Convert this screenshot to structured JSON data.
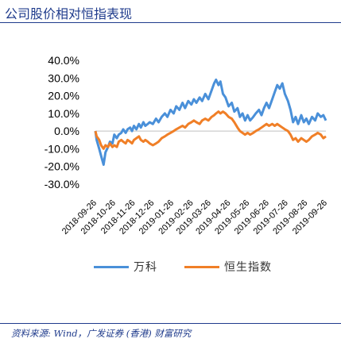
{
  "header": {
    "title": "公司股价相对恒指表现"
  },
  "footer": {
    "source": "资料来源: Wind，广发证券 (香港) 财富研究"
  },
  "colors": {
    "accent": "#1f3b8c",
    "series_vanke": "#4a90d9",
    "series_hsi": "#f07f27",
    "axis_text": "#000000"
  },
  "chart_data": {
    "type": "line",
    "title": "",
    "xlabel": "",
    "ylabel": "",
    "ylim": [
      -0.3,
      0.4
    ],
    "y_ticks": [
      "40.0%",
      "30.0%",
      "20.0%",
      "10.0%",
      "0.0%",
      "-10.0%",
      "-20.0%",
      "-30.0%"
    ],
    "y_tick_values": [
      0.4,
      0.3,
      0.2,
      0.1,
      0.0,
      -0.1,
      -0.2,
      -0.3
    ],
    "x_range": [
      "2018-09-26",
      "2019-09-26"
    ],
    "x_tick_labels": [
      "2018-09-26",
      "2018-10-26",
      "2018-11-26",
      "2018-12-26",
      "2019-01-26",
      "2019-02-26",
      "2019-03-26",
      "2019-04-26",
      "2019-05-26",
      "2019-06-26",
      "2019-07-26",
      "2019-08-26",
      "2019-09-26"
    ],
    "x_tick_dates": [
      "2018-09-26",
      "2018-10-26",
      "2018-11-26",
      "2018-12-26",
      "2019-01-26",
      "2019-02-26",
      "2019-03-26",
      "2019-04-26",
      "2019-05-26",
      "2019-06-26",
      "2019-07-26",
      "2019-08-26",
      "2019-09-26"
    ],
    "grid": false,
    "legend_position": "bottom",
    "series": [
      {
        "name": "万科",
        "points": [
          [
            "2018-09-26",
            0.0
          ],
          [
            "2018-09-28",
            -0.05
          ],
          [
            "2018-10-02",
            -0.1
          ],
          [
            "2018-10-05",
            -0.14
          ],
          [
            "2018-10-09",
            -0.19
          ],
          [
            "2018-10-12",
            -0.12
          ],
          [
            "2018-10-16",
            -0.09
          ],
          [
            "2018-10-19",
            -0.06
          ],
          [
            "2018-10-23",
            -0.07
          ],
          [
            "2018-10-26",
            -0.02
          ],
          [
            "2018-10-30",
            -0.04
          ],
          [
            "2018-11-02",
            -0.02
          ],
          [
            "2018-11-06",
            -0.01
          ],
          [
            "2018-11-09",
            0.01
          ],
          [
            "2018-11-13",
            -0.01
          ],
          [
            "2018-11-16",
            0.01
          ],
          [
            "2018-11-20",
            0.02
          ],
          [
            "2018-11-23",
            0.0
          ],
          [
            "2018-11-26",
            0.03
          ],
          [
            "2018-11-30",
            0.01
          ],
          [
            "2018-12-04",
            0.04
          ],
          [
            "2018-12-07",
            0.02
          ],
          [
            "2018-12-11",
            0.05
          ],
          [
            "2018-12-14",
            0.03
          ],
          [
            "2018-12-18",
            0.04
          ],
          [
            "2018-12-21",
            0.05
          ],
          [
            "2018-12-26",
            0.04
          ],
          [
            "2018-12-31",
            0.07
          ],
          [
            "2019-01-04",
            0.05
          ],
          [
            "2019-01-09",
            0.08
          ],
          [
            "2019-01-14",
            0.1
          ],
          [
            "2019-01-18",
            0.08
          ],
          [
            "2019-01-23",
            0.12
          ],
          [
            "2019-01-28",
            0.1
          ],
          [
            "2019-02-01",
            0.14
          ],
          [
            "2019-02-06",
            0.12
          ],
          [
            "2019-02-11",
            0.16
          ],
          [
            "2019-02-15",
            0.13
          ],
          [
            "2019-02-20",
            0.17
          ],
          [
            "2019-02-25",
            0.15
          ],
          [
            "2019-03-01",
            0.18
          ],
          [
            "2019-03-05",
            0.16
          ],
          [
            "2019-03-10",
            0.19
          ],
          [
            "2019-03-14",
            0.17
          ],
          [
            "2019-03-19",
            0.21
          ],
          [
            "2019-03-24",
            0.18
          ],
          [
            "2019-03-29",
            0.23
          ],
          [
            "2019-04-02",
            0.27
          ],
          [
            "2019-04-05",
            0.29
          ],
          [
            "2019-04-09",
            0.26
          ],
          [
            "2019-04-12",
            0.28
          ],
          [
            "2019-04-16",
            0.21
          ],
          [
            "2019-04-20",
            0.19
          ],
          [
            "2019-04-25",
            0.14
          ],
          [
            "2019-04-30",
            0.16
          ],
          [
            "2019-05-04",
            0.11
          ],
          [
            "2019-05-09",
            0.13
          ],
          [
            "2019-05-13",
            0.08
          ],
          [
            "2019-05-17",
            0.1
          ],
          [
            "2019-05-21",
            0.06
          ],
          [
            "2019-05-25",
            0.09
          ],
          [
            "2019-05-29",
            0.06
          ],
          [
            "2019-06-03",
            0.08
          ],
          [
            "2019-06-07",
            0.1
          ],
          [
            "2019-06-12",
            0.12
          ],
          [
            "2019-06-16",
            0.09
          ],
          [
            "2019-06-20",
            0.13
          ],
          [
            "2019-06-24",
            0.16
          ],
          [
            "2019-06-28",
            0.13
          ],
          [
            "2019-07-03",
            0.18
          ],
          [
            "2019-07-07",
            0.22
          ],
          [
            "2019-07-11",
            0.26
          ],
          [
            "2019-07-15",
            0.24
          ],
          [
            "2019-07-19",
            0.27
          ],
          [
            "2019-07-23",
            0.21
          ],
          [
            "2019-07-28",
            0.17
          ],
          [
            "2019-08-01",
            0.12
          ],
          [
            "2019-08-05",
            0.05
          ],
          [
            "2019-08-09",
            0.08
          ],
          [
            "2019-08-13",
            0.04
          ],
          [
            "2019-08-18",
            0.09
          ],
          [
            "2019-08-22",
            0.05
          ],
          [
            "2019-08-26",
            0.07
          ],
          [
            "2019-08-30",
            0.04
          ],
          [
            "2019-09-04",
            0.08
          ],
          [
            "2019-09-09",
            0.06
          ],
          [
            "2019-09-13",
            0.1
          ],
          [
            "2019-09-18",
            0.08
          ],
          [
            "2019-09-22",
            0.09
          ],
          [
            "2019-09-26",
            0.06
          ]
        ]
      },
      {
        "name": "恒生指数",
        "points": [
          [
            "2018-09-26",
            0.0
          ],
          [
            "2018-09-28",
            -0.03
          ],
          [
            "2018-10-02",
            -0.05
          ],
          [
            "2018-10-05",
            -0.08
          ],
          [
            "2018-10-09",
            -0.1
          ],
          [
            "2018-10-12",
            -0.08
          ],
          [
            "2018-10-16",
            -0.09
          ],
          [
            "2018-10-19",
            -0.07
          ],
          [
            "2018-10-23",
            -0.09
          ],
          [
            "2018-10-26",
            -0.08
          ],
          [
            "2018-10-30",
            -0.09
          ],
          [
            "2018-11-02",
            -0.06
          ],
          [
            "2018-11-06",
            -0.05
          ],
          [
            "2018-11-09",
            -0.06
          ],
          [
            "2018-11-13",
            -0.07
          ],
          [
            "2018-11-16",
            -0.05
          ],
          [
            "2018-11-20",
            -0.06
          ],
          [
            "2018-11-23",
            -0.07
          ],
          [
            "2018-11-26",
            -0.05
          ],
          [
            "2018-11-30",
            -0.04
          ],
          [
            "2018-12-04",
            -0.03
          ],
          [
            "2018-12-07",
            -0.05
          ],
          [
            "2018-12-11",
            -0.06
          ],
          [
            "2018-12-14",
            -0.05
          ],
          [
            "2018-12-18",
            -0.06
          ],
          [
            "2018-12-21",
            -0.07
          ],
          [
            "2018-12-26",
            -0.08
          ],
          [
            "2018-12-31",
            -0.07
          ],
          [
            "2019-01-04",
            -0.06
          ],
          [
            "2019-01-09",
            -0.04
          ],
          [
            "2019-01-14",
            -0.03
          ],
          [
            "2019-01-18",
            -0.02
          ],
          [
            "2019-01-23",
            -0.01
          ],
          [
            "2019-01-28",
            0.0
          ],
          [
            "2019-02-01",
            0.01
          ],
          [
            "2019-02-06",
            0.02
          ],
          [
            "2019-02-11",
            0.03
          ],
          [
            "2019-02-15",
            0.02
          ],
          [
            "2019-02-20",
            0.04
          ],
          [
            "2019-02-25",
            0.05
          ],
          [
            "2019-03-01",
            0.06
          ],
          [
            "2019-03-05",
            0.05
          ],
          [
            "2019-03-10",
            0.04
          ],
          [
            "2019-03-14",
            0.06
          ],
          [
            "2019-03-19",
            0.07
          ],
          [
            "2019-03-24",
            0.06
          ],
          [
            "2019-03-29",
            0.08
          ],
          [
            "2019-04-02",
            0.09
          ],
          [
            "2019-04-05",
            0.1
          ],
          [
            "2019-04-09",
            0.11
          ],
          [
            "2019-04-12",
            0.1
          ],
          [
            "2019-04-16",
            0.11
          ],
          [
            "2019-04-20",
            0.1
          ],
          [
            "2019-04-25",
            0.08
          ],
          [
            "2019-04-30",
            0.07
          ],
          [
            "2019-05-04",
            0.05
          ],
          [
            "2019-05-09",
            0.02
          ],
          [
            "2019-05-13",
            0.0
          ],
          [
            "2019-05-17",
            -0.01
          ],
          [
            "2019-05-21",
            -0.02
          ],
          [
            "2019-05-25",
            -0.01
          ],
          [
            "2019-05-29",
            -0.02
          ],
          [
            "2019-06-03",
            -0.01
          ],
          [
            "2019-06-07",
            0.0
          ],
          [
            "2019-06-12",
            0.01
          ],
          [
            "2019-06-16",
            0.02
          ],
          [
            "2019-06-20",
            0.03
          ],
          [
            "2019-06-24",
            0.04
          ],
          [
            "2019-06-28",
            0.03
          ],
          [
            "2019-07-03",
            0.04
          ],
          [
            "2019-07-07",
            0.03
          ],
          [
            "2019-07-11",
            0.04
          ],
          [
            "2019-07-15",
            0.03
          ],
          [
            "2019-07-19",
            0.02
          ],
          [
            "2019-07-23",
            0.01
          ],
          [
            "2019-07-28",
            0.0
          ],
          [
            "2019-08-01",
            -0.02
          ],
          [
            "2019-08-05",
            -0.05
          ],
          [
            "2019-08-09",
            -0.04
          ],
          [
            "2019-08-13",
            -0.06
          ],
          [
            "2019-08-18",
            -0.04
          ],
          [
            "2019-08-22",
            -0.05
          ],
          [
            "2019-08-26",
            -0.06
          ],
          [
            "2019-08-30",
            -0.05
          ],
          [
            "2019-09-04",
            -0.03
          ],
          [
            "2019-09-09",
            -0.02
          ],
          [
            "2019-09-13",
            -0.01
          ],
          [
            "2019-09-18",
            -0.02
          ],
          [
            "2019-09-22",
            -0.04
          ],
          [
            "2019-09-26",
            -0.03
          ]
        ]
      }
    ]
  }
}
